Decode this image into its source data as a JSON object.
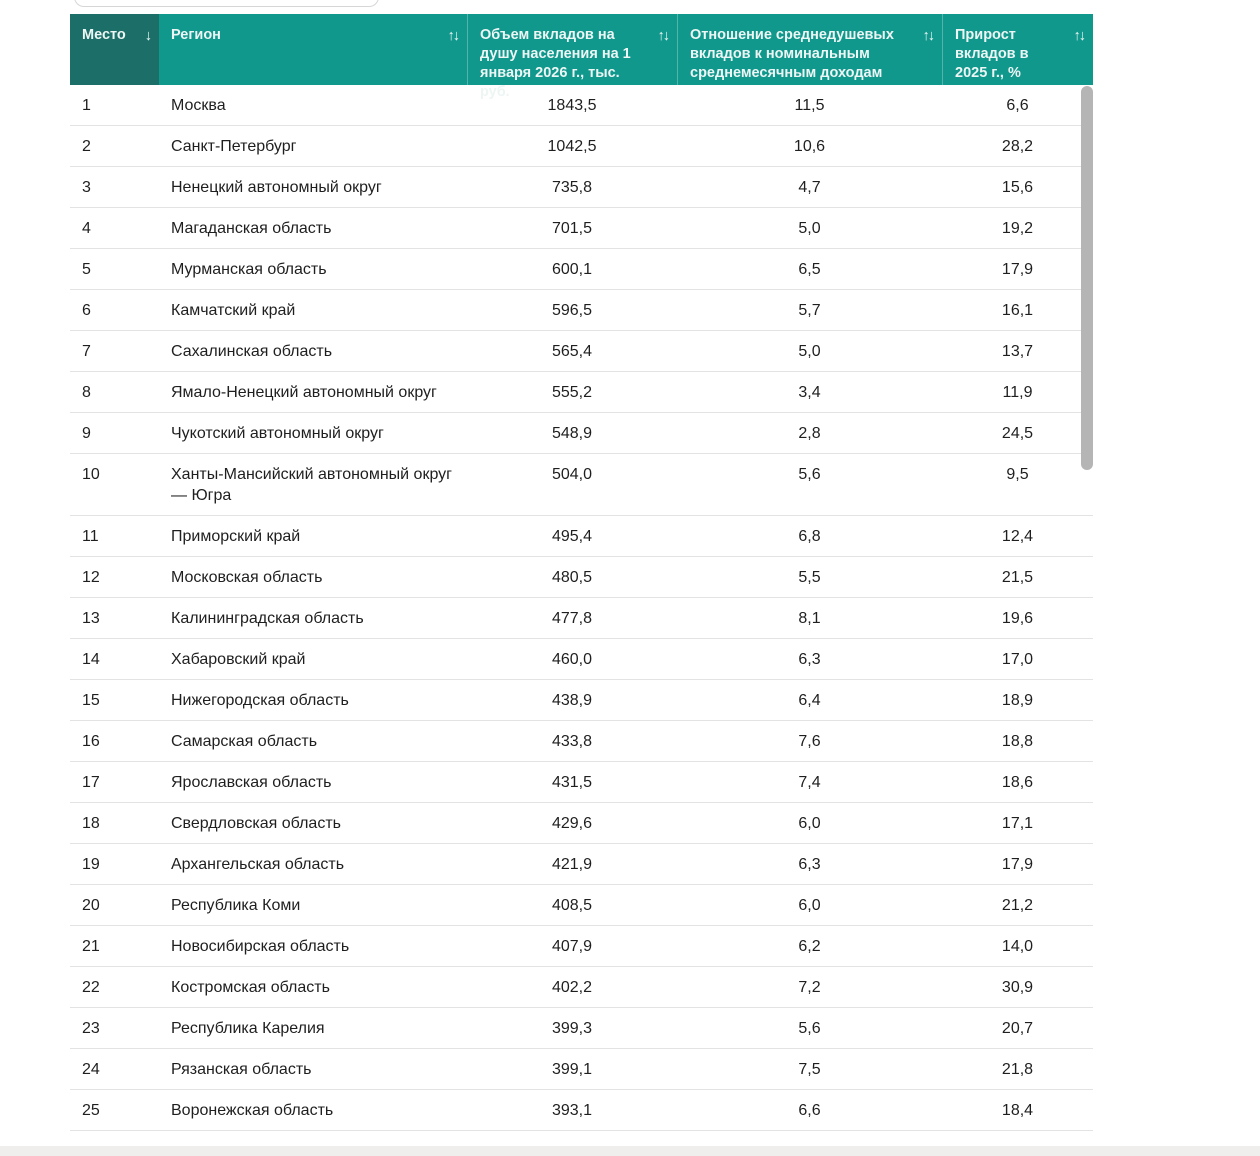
{
  "table": {
    "columns": [
      {
        "id": "place",
        "label": "Место",
        "sort_icon": "↓",
        "sorted": true
      },
      {
        "id": "region",
        "label": "Регион",
        "sort_icon": "↑↓",
        "sorted": false
      },
      {
        "id": "volume",
        "label": "Объем вкладов на душу населения на 1 января 2026 г., тыс. руб.",
        "sort_icon": "↑↓",
        "sorted": false
      },
      {
        "id": "ratio",
        "label": "Отношение среднедушевых вкладов к номинальным среднемесячным доходам",
        "sort_icon": "↑↓",
        "sorted": false
      },
      {
        "id": "growth",
        "label": "Прирост вкладов в 2025 г., %",
        "sort_icon": "↑↓",
        "sorted": false
      }
    ],
    "rows": [
      {
        "place": "1",
        "region": "Москва",
        "volume": "1843,5",
        "ratio": "11,5",
        "growth": "6,6"
      },
      {
        "place": "2",
        "region": "Санкт-Петербург",
        "volume": "1042,5",
        "ratio": "10,6",
        "growth": "28,2"
      },
      {
        "place": "3",
        "region": "Ненецкий автономный округ",
        "volume": "735,8",
        "ratio": "4,7",
        "growth": "15,6"
      },
      {
        "place": "4",
        "region": "Магаданская область",
        "volume": "701,5",
        "ratio": "5,0",
        "growth": "19,2"
      },
      {
        "place": "5",
        "region": "Мурманская область",
        "volume": "600,1",
        "ratio": "6,5",
        "growth": "17,9"
      },
      {
        "place": "6",
        "region": "Камчатский край",
        "volume": "596,5",
        "ratio": "5,7",
        "growth": "16,1"
      },
      {
        "place": "7",
        "region": "Сахалинская область",
        "volume": "565,4",
        "ratio": "5,0",
        "growth": "13,7"
      },
      {
        "place": "8",
        "region": "Ямало-Ненецкий автономный округ",
        "volume": "555,2",
        "ratio": "3,4",
        "growth": "11,9"
      },
      {
        "place": "9",
        "region": "Чукотский автономный округ",
        "volume": "548,9",
        "ratio": "2,8",
        "growth": "24,5"
      },
      {
        "place": "10",
        "region": "Ханты-Мансийский автономный округ — Югра",
        "volume": "504,0",
        "ratio": "5,6",
        "growth": "9,5"
      },
      {
        "place": "11",
        "region": "Приморский край",
        "volume": "495,4",
        "ratio": "6,8",
        "growth": "12,4"
      },
      {
        "place": "12",
        "region": "Московская область",
        "volume": "480,5",
        "ratio": "5,5",
        "growth": "21,5"
      },
      {
        "place": "13",
        "region": "Калининградская область",
        "volume": "477,8",
        "ratio": "8,1",
        "growth": "19,6"
      },
      {
        "place": "14",
        "region": "Хабаровский край",
        "volume": "460,0",
        "ratio": "6,3",
        "growth": "17,0"
      },
      {
        "place": "15",
        "region": "Нижегородская область",
        "volume": "438,9",
        "ratio": "6,4",
        "growth": "18,9"
      },
      {
        "place": "16",
        "region": "Самарская область",
        "volume": "433,8",
        "ratio": "7,6",
        "growth": "18,8"
      },
      {
        "place": "17",
        "region": "Ярославская область",
        "volume": "431,5",
        "ratio": "7,4",
        "growth": "18,6"
      },
      {
        "place": "18",
        "region": "Свердловская область",
        "volume": "429,6",
        "ratio": "6,0",
        "growth": "17,1"
      },
      {
        "place": "19",
        "region": "Архангельская область",
        "volume": "421,9",
        "ratio": "6,3",
        "growth": "17,9"
      },
      {
        "place": "20",
        "region": "Республика Коми",
        "volume": "408,5",
        "ratio": "6,0",
        "growth": "21,2"
      },
      {
        "place": "21",
        "region": "Новосибирская область",
        "volume": "407,9",
        "ratio": "6,2",
        "growth": "14,0"
      },
      {
        "place": "22",
        "region": "Костромская область",
        "volume": "402,2",
        "ratio": "7,2",
        "growth": "30,9"
      },
      {
        "place": "23",
        "region": "Республика Карелия",
        "volume": "399,3",
        "ratio": "5,6",
        "growth": "20,7"
      },
      {
        "place": "24",
        "region": "Рязанская область",
        "volume": "399,1",
        "ratio": "7,5",
        "growth": "21,8"
      },
      {
        "place": "25",
        "region": "Воронежская область",
        "volume": "393,1",
        "ratio": "6,6",
        "growth": "18,4"
      }
    ]
  },
  "colors": {
    "header_bg": "#11988D",
    "header_sorted_bg": "#1B6F68",
    "header_text": "#EDF6F4",
    "row_border": "#E3E3E3",
    "body_text": "#1F1F1F",
    "scrollbar": "#B5B5B5",
    "bottom_strip": "#EFEEEC"
  }
}
